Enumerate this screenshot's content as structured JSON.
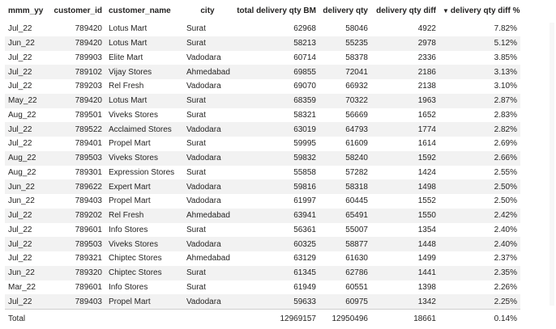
{
  "headers": [
    "mmm_yy",
    "customer_id",
    "customer_name",
    "city",
    "total delivery qty BM",
    "delivery qty",
    "delivery qty diff",
    "delivery qty diff %"
  ],
  "sort_icon": "sort-descending-icon",
  "rows": [
    [
      "Jul_22",
      "789420",
      "Lotus Mart",
      "Surat",
      "62968",
      "58046",
      "4922",
      "7.82%"
    ],
    [
      "Jun_22",
      "789420",
      "Lotus Mart",
      "Surat",
      "58213",
      "55235",
      "2978",
      "5.12%"
    ],
    [
      "Jul_22",
      "789903",
      "Elite Mart",
      "Vadodara",
      "60714",
      "58378",
      "2336",
      "3.85%"
    ],
    [
      "Jul_22",
      "789102",
      "Vijay Stores",
      "Ahmedabad",
      "69855",
      "72041",
      "2186",
      "3.13%"
    ],
    [
      "Jul_22",
      "789203",
      "Rel Fresh",
      "Vadodara",
      "69070",
      "66932",
      "2138",
      "3.10%"
    ],
    [
      "May_22",
      "789420",
      "Lotus Mart",
      "Surat",
      "68359",
      "70322",
      "1963",
      "2.87%"
    ],
    [
      "Aug_22",
      "789501",
      "Viveks Stores",
      "Surat",
      "58321",
      "56669",
      "1652",
      "2.83%"
    ],
    [
      "Jul_22",
      "789522",
      "Acclaimed Stores",
      "Vadodara",
      "63019",
      "64793",
      "1774",
      "2.82%"
    ],
    [
      "Jul_22",
      "789401",
      "Propel Mart",
      "Surat",
      "59995",
      "61609",
      "1614",
      "2.69%"
    ],
    [
      "Aug_22",
      "789503",
      "Viveks Stores",
      "Vadodara",
      "59832",
      "58240",
      "1592",
      "2.66%"
    ],
    [
      "Aug_22",
      "789301",
      "Expression Stores",
      "Surat",
      "55858",
      "57282",
      "1424",
      "2.55%"
    ],
    [
      "Jun_22",
      "789622",
      "Expert Mart",
      "Vadodara",
      "59816",
      "58318",
      "1498",
      "2.50%"
    ],
    [
      "Jun_22",
      "789403",
      "Propel Mart",
      "Vadodara",
      "61997",
      "60445",
      "1552",
      "2.50%"
    ],
    [
      "Jul_22",
      "789202",
      "Rel Fresh",
      "Ahmedabad",
      "63941",
      "65491",
      "1550",
      "2.42%"
    ],
    [
      "Jul_22",
      "789601",
      "Info Stores",
      "Surat",
      "56361",
      "55007",
      "1354",
      "2.40%"
    ],
    [
      "Jul_22",
      "789503",
      "Viveks Stores",
      "Vadodara",
      "60325",
      "58877",
      "1448",
      "2.40%"
    ],
    [
      "Jul_22",
      "789321",
      "Chiptec Stores",
      "Ahmedabad",
      "63129",
      "61630",
      "1499",
      "2.37%"
    ],
    [
      "Jun_22",
      "789320",
      "Chiptec Stores",
      "Surat",
      "61345",
      "62786",
      "1441",
      "2.35%"
    ],
    [
      "Mar_22",
      "789601",
      "Info Stores",
      "Surat",
      "61949",
      "60551",
      "1398",
      "2.26%"
    ],
    [
      "Jul_22",
      "789403",
      "Propel Mart",
      "Vadodara",
      "59633",
      "60975",
      "1342",
      "2.25%"
    ]
  ],
  "total": {
    "label": "Total",
    "total_delivery_qty_bm": "12969157",
    "delivery_qty": "12950496",
    "delivery_qty_diff": "18661",
    "delivery_qty_diff_pct": "0.14%"
  }
}
